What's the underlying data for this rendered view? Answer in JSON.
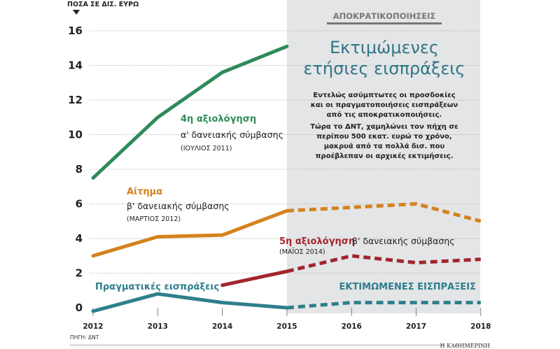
{
  "chart_data": {
    "type": "line",
    "unit_label": "ΠΟΣΑ ΣΕ ΔΙΣ. ΕΥΡΩ",
    "x": [
      "2012",
      "2013",
      "2014",
      "2015",
      "2016",
      "2017",
      "2018"
    ],
    "yticks": [
      "0",
      "2",
      "4",
      "6",
      "8",
      "10",
      "12",
      "14",
      "16"
    ],
    "ylim": [
      0,
      16
    ],
    "grid": true,
    "projection_start": "2015",
    "series": [
      {
        "key": "green",
        "name": "4η αξιολόγηση α' δανειακής σύμβασης (ΙΟΥΛΙΟΣ 2011)",
        "color": "#2e8b5a",
        "values": [
          7.5,
          11.0,
          13.6,
          15.1,
          null,
          null,
          null
        ],
        "dashed_from_index": null
      },
      {
        "key": "orange",
        "name": "Αίτημα β' δανειακής σύμβασης (ΜΑΡΤΙΟΣ 2012)",
        "color": "#d4821e",
        "values": [
          3.0,
          4.1,
          4.2,
          5.6,
          5.8,
          6.0,
          5.0
        ],
        "dashed_from_index": 3
      },
      {
        "key": "red",
        "name": "5η αξιολόγηση β' δανειακής σύμβασης (ΜΑΪΟΣ 2014)",
        "color": "#a3262e",
        "values": [
          null,
          null,
          1.3,
          2.1,
          3.0,
          2.6,
          2.8
        ],
        "start_offset": 0,
        "dashed_from_index": 3
      },
      {
        "key": "teal",
        "name": "Πραγματικές εισπράξεις / Εκτιμώμενες εισπράξεις",
        "color": "#2e7f8c",
        "values": [
          -0.2,
          0.8,
          0.3,
          0.0,
          0.3,
          0.3,
          0.3
        ],
        "dashed_from_index": 3
      }
    ],
    "annotations": {
      "green_head": "4η αξιολόγηση",
      "green_sub": "α' δανειακής σύμβασης",
      "green_date": "(ΙΟΥΛΙΟΣ 2011)",
      "orange_head": "Αίτημα",
      "orange_sub": "β' δανειακής σύμβασης",
      "orange_date": "(ΜΑΡΤΙΟΣ 2012)",
      "red_head": "5η αξιολόγηση",
      "red_sub": "β' δανειακής σύμβασης",
      "red_date": "(ΜΑΪΟΣ 2014)",
      "teal_actual": "Πραγματικές εισπράξεις",
      "teal_estimated": "ΕΚΤΙΜΩΜΕΝΕΣ ΕΙΣΠΡΑΞΕΙΣ"
    }
  },
  "panel": {
    "section_label": "ΑΠΟΚΡΑΤΙΚΟΠΟΙΗΣΕΙΣ",
    "title_line1": "Εκτιμώμενες",
    "title_line2": "ετήσιες εισπράξεις",
    "body_lines": [
      "Εντελώς ασύμπτωτες οι προσδοκίες",
      "και οι πραγματοποιήσεις εισπράξεων",
      "από τις αποκρατικοποιήσεις.",
      "Τώρα το ΔΝΤ, χαμηλώνει τον πήχη σε",
      "περίπου 500 εκατ. ευρώ το χρόνο,",
      "μακρυά από τα πολλά δισ. που",
      "προέβλεπαν οι αρχικές εκτιμήσεις."
    ]
  },
  "footer": {
    "source": "ΠΗΓΗ: ΔΝΤ",
    "brand": "Η ΚΑΘΗΜΕΡΙΝΗ"
  }
}
